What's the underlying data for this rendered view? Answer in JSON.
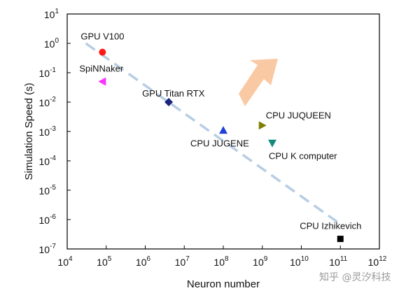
{
  "chart_data": {
    "type": "scatter",
    "title": "",
    "xlabel": "Neuron number",
    "ylabel": "Simulation Speed (s)",
    "xscale": "log",
    "yscale": "log",
    "xlim_exp": [
      4,
      12
    ],
    "ylim_exp": [
      -7,
      1
    ],
    "tick_base": "10",
    "x_tick_exponents": [
      "4",
      "5",
      "6",
      "7",
      "8",
      "9",
      "10",
      "11",
      "12"
    ],
    "y_tick_exponents": [
      "1",
      "0",
      "-1",
      "-2",
      "-3",
      "-4",
      "-5",
      "-6",
      "-7"
    ],
    "grid": false,
    "series": [
      {
        "name": "GPU V100",
        "x": 80000,
        "y": 0.5,
        "marker": "circle",
        "color": "#ff1a1a"
      },
      {
        "name": "SpiNNaker",
        "x": 80000,
        "y": 0.05,
        "marker": "triangle-left",
        "color": "#ff33ff"
      },
      {
        "name": "GPU Titan RTX",
        "x": 4000000,
        "y": 0.01,
        "marker": "diamond",
        "color": "#1a237e"
      },
      {
        "name": "CPU JUGENE",
        "x": 100000000,
        "y": 0.0011,
        "marker": "triangle-up",
        "color": "#1f3fd9"
      },
      {
        "name": "CPU JUQUEEN",
        "x": 1000000000,
        "y": 0.0016,
        "marker": "triangle-right",
        "color": "#808000"
      },
      {
        "name": "CPU K computer",
        "x": 1800000000,
        "y": 0.0004,
        "marker": "triangle-down",
        "color": "#138a80"
      },
      {
        "name": "CPU Izhikevich",
        "x": 100000000000,
        "y": 2.2e-07,
        "marker": "square",
        "color": "#000000"
      }
    ],
    "trend_line": {
      "style": "dashed",
      "color": "#b7cde3",
      "from": [
        30000,
        1
      ],
      "to": [
        100000000000,
        7e-07
      ]
    },
    "annotation_arrow": {
      "direction": "up-right",
      "color": "#f9c9a4"
    }
  },
  "watermark": "知乎 @灵汐科技"
}
